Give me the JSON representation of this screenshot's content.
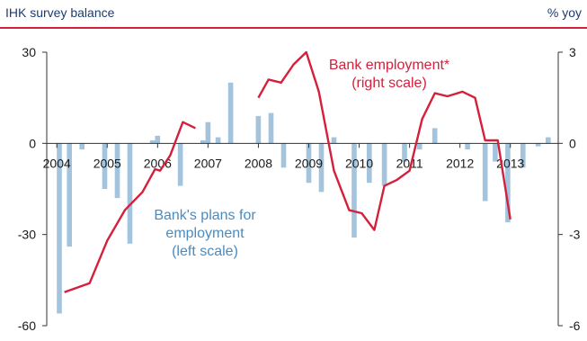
{
  "header": {
    "left_title": "IHK survey balance",
    "right_title": "% yoy"
  },
  "colors": {
    "bars": "#a3c4dc",
    "line": "#d4203a",
    "rule": "#d4203a",
    "axis": "#333333",
    "annotation_blue": "#4a8bc0"
  },
  "chart_data": {
    "type": "bar+line",
    "x_tick_labels": [
      "2004",
      "2005",
      "2006",
      "2007",
      "2008",
      "2009",
      "2010",
      "2011",
      "2012",
      "2013"
    ],
    "y_left": {
      "ticks": [
        "30",
        "0",
        "-30",
        "-60"
      ],
      "lim": [
        -60,
        30
      ]
    },
    "y_right": {
      "ticks": [
        "3",
        "0",
        "-3",
        "-6"
      ],
      "lim": [
        -6,
        3
      ]
    },
    "series": [
      {
        "axis": "left",
        "type": "bar",
        "annotation": [
          "Bank's plans for",
          "employment",
          "(left scale)"
        ],
        "points": [
          {
            "x": 2004.1,
            "y": -56
          },
          {
            "x": 2004.3,
            "y": -34
          },
          {
            "x": 2004.55,
            "y": -2
          },
          {
            "x": 2005.0,
            "y": -15
          },
          {
            "x": 2005.25,
            "y": -18
          },
          {
            "x": 2005.5,
            "y": -33
          },
          {
            "x": 2005.95,
            "y": 1
          },
          {
            "x": 2006.05,
            "y": 2.5
          },
          {
            "x": 2006.5,
            "y": -14
          },
          {
            "x": 2006.95,
            "y": 1
          },
          {
            "x": 2007.05,
            "y": 7
          },
          {
            "x": 2007.25,
            "y": 2
          },
          {
            "x": 2007.5,
            "y": 20
          },
          {
            "x": 2008.05,
            "y": 9
          },
          {
            "x": 2008.3,
            "y": 10
          },
          {
            "x": 2008.55,
            "y": -8
          },
          {
            "x": 2009.05,
            "y": -13
          },
          {
            "x": 2009.3,
            "y": -16
          },
          {
            "x": 2009.55,
            "y": 2
          },
          {
            "x": 2009.95,
            "y": -31
          },
          {
            "x": 2010.25,
            "y": -13
          },
          {
            "x": 2010.55,
            "y": -14
          },
          {
            "x": 2010.95,
            "y": -6
          },
          {
            "x": 2011.25,
            "y": -2
          },
          {
            "x": 2011.55,
            "y": 5
          },
          {
            "x": 2012.2,
            "y": -2
          },
          {
            "x": 2012.55,
            "y": -19
          },
          {
            "x": 2012.75,
            "y": -6
          },
          {
            "x": 2013.0,
            "y": -26
          },
          {
            "x": 2013.3,
            "y": -8
          },
          {
            "x": 2013.6,
            "y": -1
          },
          {
            "x": 2013.8,
            "y": 2
          }
        ]
      },
      {
        "axis": "right",
        "type": "line",
        "annotation": [
          "Bank employment*",
          "(right scale)"
        ],
        "segments": [
          [
            {
              "x": 2004.2,
              "y": -4.9
            },
            {
              "x": 2004.7,
              "y": -4.6
            },
            {
              "x": 2005.05,
              "y": -3.2
            },
            {
              "x": 2005.4,
              "y": -2.2
            },
            {
              "x": 2005.75,
              "y": -1.6
            },
            {
              "x": 2006.0,
              "y": -0.85
            },
            {
              "x": 2006.1,
              "y": -0.9
            },
            {
              "x": 2006.3,
              "y": -0.4
            },
            {
              "x": 2006.55,
              "y": 0.7
            },
            {
              "x": 2006.8,
              "y": 0.5
            }
          ],
          [
            {
              "x": 2008.05,
              "y": 1.5
            },
            {
              "x": 2008.25,
              "y": 2.1
            },
            {
              "x": 2008.5,
              "y": 2.0
            },
            {
              "x": 2008.75,
              "y": 2.6
            },
            {
              "x": 2009.0,
              "y": 3.0
            },
            {
              "x": 2009.25,
              "y": 1.7
            },
            {
              "x": 2009.55,
              "y": -0.9
            },
            {
              "x": 2009.85,
              "y": -2.2
            },
            {
              "x": 2010.1,
              "y": -2.3
            },
            {
              "x": 2010.35,
              "y": -2.85
            },
            {
              "x": 2010.55,
              "y": -1.4
            },
            {
              "x": 2010.8,
              "y": -1.2
            },
            {
              "x": 2011.05,
              "y": -0.9
            },
            {
              "x": 2011.3,
              "y": 0.8
            },
            {
              "x": 2011.55,
              "y": 1.65
            },
            {
              "x": 2011.8,
              "y": 1.55
            },
            {
              "x": 2012.1,
              "y": 1.7
            },
            {
              "x": 2012.35,
              "y": 1.5
            },
            {
              "x": 2012.55,
              "y": 0.1
            },
            {
              "x": 2012.8,
              "y": 0.1
            },
            {
              "x": 2013.05,
              "y": -2.5
            }
          ]
        ]
      }
    ],
    "grid": false,
    "legend": "none"
  }
}
